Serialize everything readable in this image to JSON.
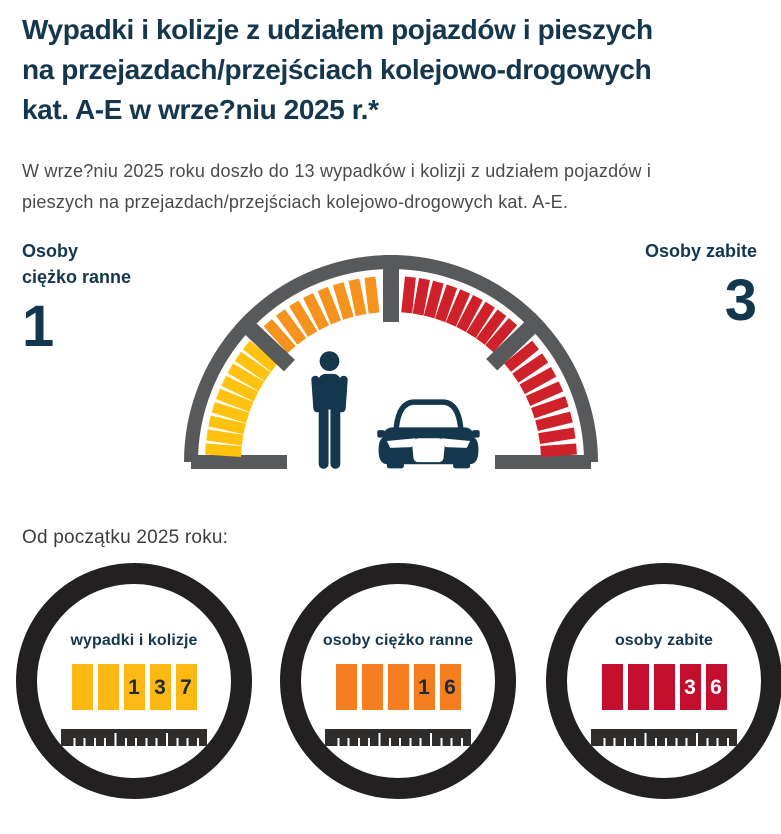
{
  "colors": {
    "navy": "#14374E",
    "text": "#4A4A4A",
    "ring_gray": "#58595B",
    "circle_black": "#232021",
    "ruler_dark": "#2E2D2C"
  },
  "header": {
    "title_lines": [
      "Wypadki i kolizje z udziałem pojazdów i pieszych",
      "na przejazdach/przejściach kolejowo-drogowych",
      "kat. A-E w wrze?niu 2025 r.*"
    ]
  },
  "intro": {
    "lines": [
      "W wrze?niu 2025 roku doszło do 13 wypadków i kolizji z udziałem pojazdów i",
      "pieszych na przejazdach/przejściach kolejowo-drogowych kat. A-E."
    ]
  },
  "gauge_section": {
    "left_stat": {
      "label_lines": [
        "Osoby",
        "ciężko ranne"
      ],
      "value": "1"
    },
    "right_stat": {
      "label": "Osoby zabite",
      "value": "3"
    },
    "gauge": {
      "ring_color": "#58595B",
      "divider_angles": [
        136.5,
        90,
        44
      ],
      "segments": [
        {
          "color": "#FFC20E",
          "from": 176,
          "to": 141,
          "ticks": 9
        },
        {
          "color": "#F6921E",
          "from": 131.5,
          "to": 96.5,
          "ticks": 8
        },
        {
          "color": "#CE2129",
          "from": 84,
          "to": 49,
          "ticks": 9
        },
        {
          "color": "#CE2129",
          "from": 39,
          "to": 4,
          "ticks": 8
        }
      ]
    }
  },
  "ytd": {
    "heading": "Od początku 2025 roku:",
    "counters": [
      {
        "label": "wypadki i kolizje",
        "value": 137,
        "digits": [
          "",
          "",
          "1",
          "3",
          "7"
        ],
        "block_color": "#FDB813",
        "digit_color": "#1D2B38"
      },
      {
        "label": "osoby ciężko ranne",
        "value": 16,
        "digits": [
          "",
          "",
          "",
          "1",
          "6"
        ],
        "block_color": "#F57E20",
        "digit_color": "#1D2B38"
      },
      {
        "label": "osoby zabite",
        "value": 36,
        "digits": [
          "",
          "",
          "",
          "3",
          "6"
        ],
        "block_color": "#C30E2E",
        "digit_color": "#FFFFFF"
      }
    ]
  },
  "chart_data": [
    {
      "type": "table",
      "title": "Wypadki i kolizje z udziałem pojazdów i pieszych na przejazdach/przejściach kolejowo-drogowych kat. A-E w wrze?niu 2025 r.*",
      "categories": [
        "wypadki i kolizje",
        "osoby ciężko ranne",
        "osoby zabite"
      ],
      "values": [
        13,
        1,
        3
      ]
    },
    {
      "type": "table",
      "title": "Od początku 2025 roku",
      "categories": [
        "wypadki i kolizje",
        "osoby ciężko ranne",
        "osoby zabite"
      ],
      "values": [
        137,
        16,
        36
      ]
    }
  ]
}
